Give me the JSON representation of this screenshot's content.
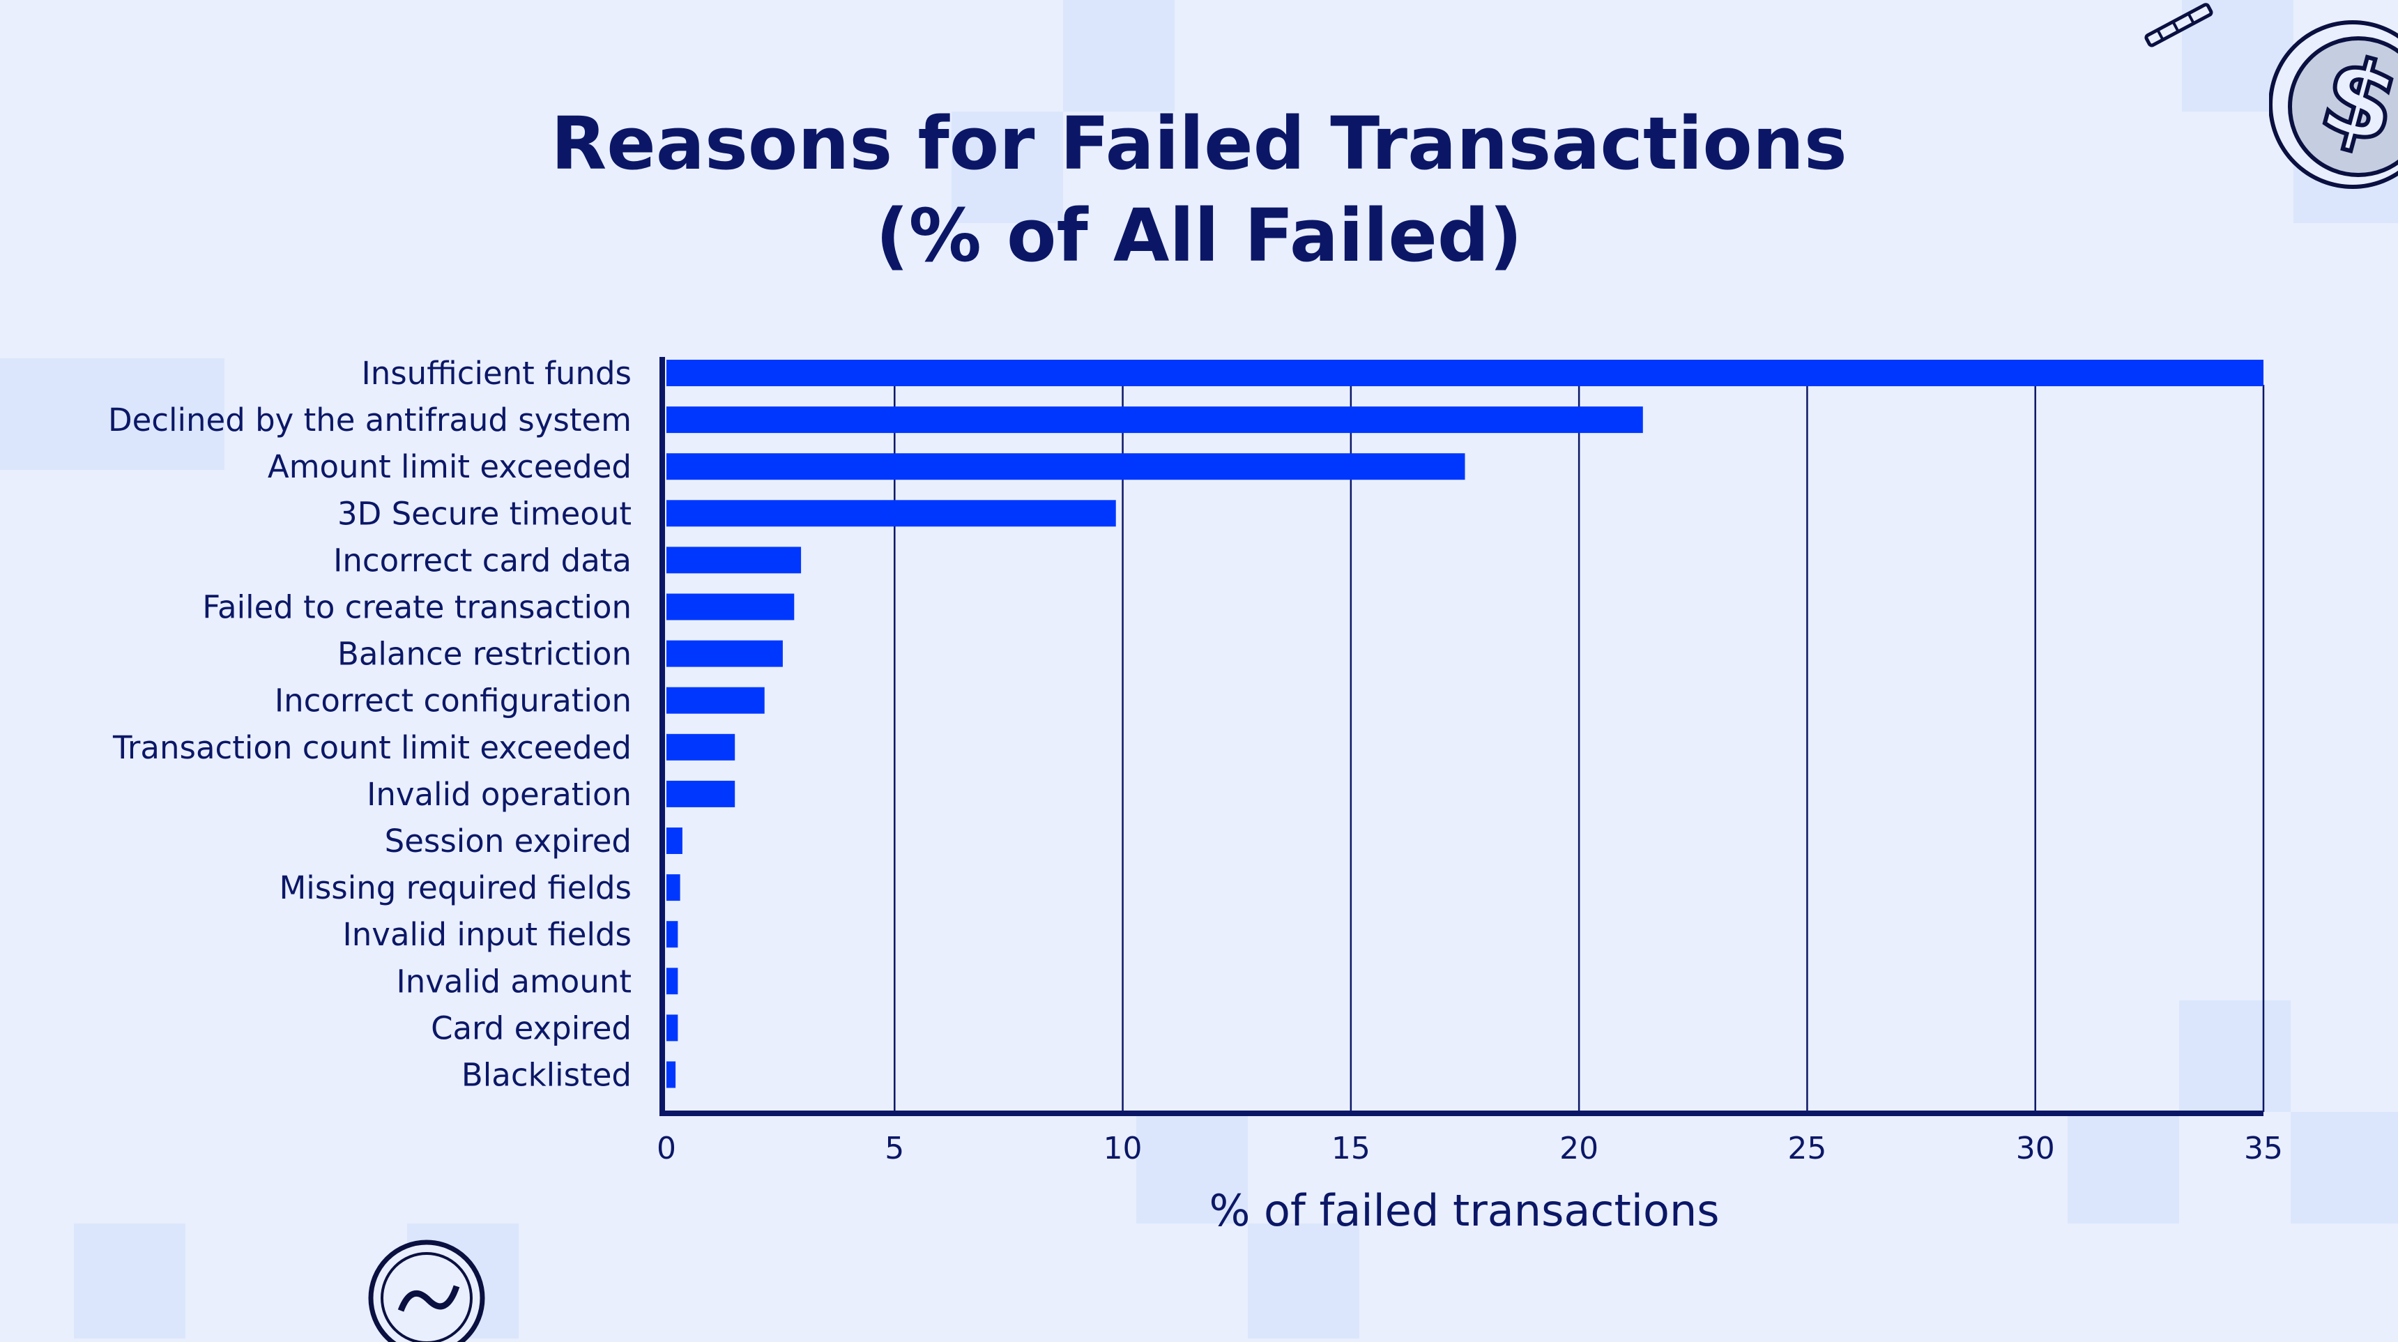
{
  "colors": {
    "bar": "#0037ff",
    "axis": "#0b1766",
    "background": "#e9effd",
    "decor": "#dbe6fc"
  },
  "icons": [
    "coin-dollar-icon",
    "pencil-icon",
    "exchange-logo-icon"
  ],
  "chart_data": {
    "type": "bar",
    "orientation": "horizontal",
    "title": [
      "Reasons for Failed Transactions",
      "(% of All Failed)"
    ],
    "xlabel": "% of failed transactions",
    "ylabel": "",
    "xlim": [
      0,
      35
    ],
    "xticks": [
      0,
      5,
      10,
      15,
      20,
      25,
      30,
      35
    ],
    "grid": "vertical",
    "categories": [
      "Insufficient funds",
      "Declined by the antifraud system",
      "Amount limit exceeded",
      "3D Secure timeout",
      "Incorrect card data",
      "Failed to create transaction",
      "Balance restriction",
      "Incorrect configuration",
      "Transaction count limit exceeded",
      "Invalid operation",
      "Session expired",
      "Missing required fields",
      "Invalid input fields",
      "Invalid amount",
      "Card expired",
      "Blacklisted"
    ],
    "values": [
      35.0,
      21.4,
      17.5,
      9.85,
      2.95,
      2.8,
      2.55,
      2.15,
      1.5,
      1.5,
      0.35,
      0.3,
      0.25,
      0.25,
      0.25,
      0.2
    ]
  }
}
